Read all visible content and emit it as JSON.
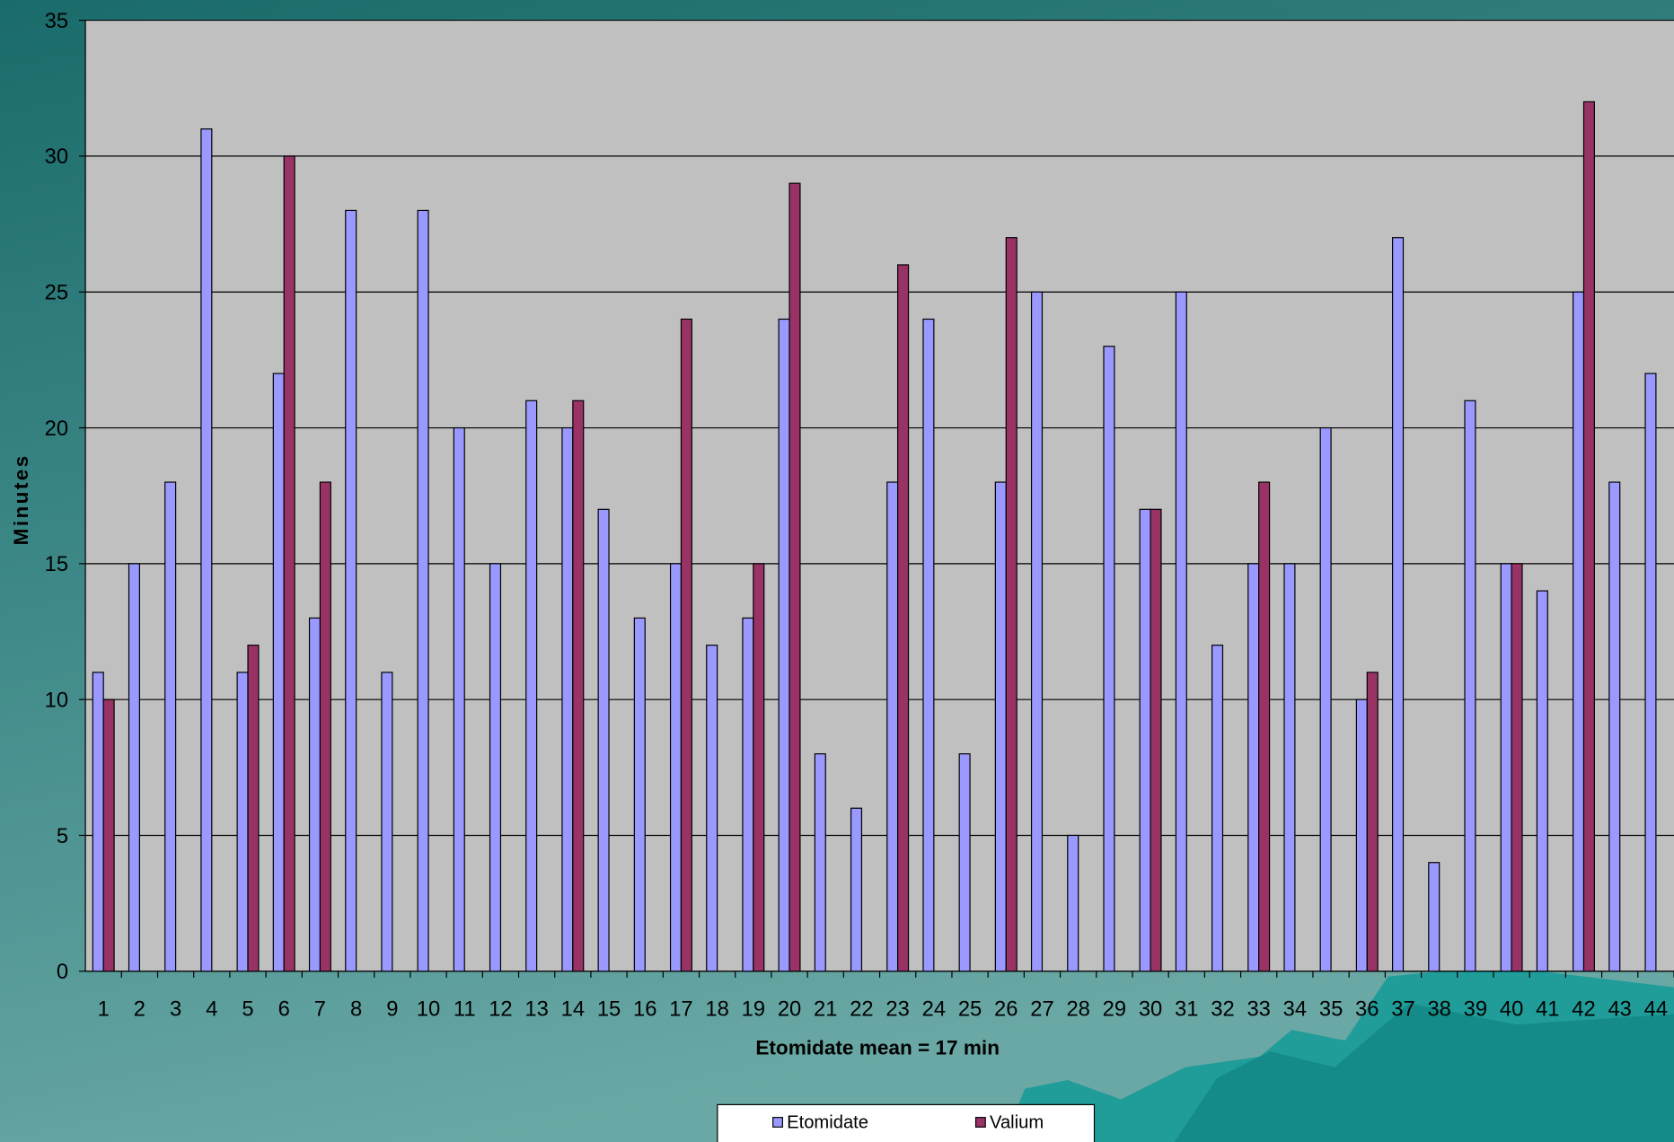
{
  "chart_data": {
    "type": "bar",
    "x_label": "Etomidate mean = 17 min",
    "y_label": "Minutes",
    "categories": [
      "1",
      "2",
      "3",
      "4",
      "5",
      "6",
      "7",
      "8",
      "9",
      "10",
      "11",
      "12",
      "13",
      "14",
      "15",
      "16",
      "17",
      "18",
      "19",
      "20",
      "21",
      "22",
      "23",
      "24",
      "25",
      "26",
      "27",
      "28",
      "29",
      "30",
      "31",
      "32",
      "33",
      "34",
      "35",
      "36",
      "37",
      "38",
      "39",
      "40",
      "41",
      "42",
      "43",
      "44"
    ],
    "series": [
      {
        "name": "Etomidate",
        "color": "#9999ff",
        "values": [
          11,
          15,
          18,
          31,
          11,
          22,
          13,
          28,
          11,
          28,
          20,
          15,
          21,
          20,
          17,
          13,
          15,
          12,
          13,
          24,
          8,
          6,
          18,
          24,
          8,
          18,
          25,
          5,
          23,
          17,
          25,
          12,
          15,
          15,
          20,
          10,
          27,
          4,
          21,
          15,
          14,
          25,
          18,
          22
        ]
      },
      {
        "name": "Valium",
        "color": "#993366",
        "values": [
          10,
          null,
          null,
          null,
          12,
          30,
          18,
          null,
          null,
          null,
          null,
          null,
          null,
          21,
          null,
          null,
          24,
          null,
          15,
          29,
          null,
          null,
          26,
          null,
          null,
          27,
          null,
          null,
          null,
          17,
          null,
          null,
          18,
          null,
          null,
          11,
          null,
          null,
          null,
          15,
          null,
          32,
          null,
          null
        ]
      }
    ],
    "ylim": [
      0,
      35
    ],
    "yticks": [
      0,
      5,
      10,
      15,
      20,
      25,
      30,
      35
    ],
    "grid": true,
    "legend": "bottom"
  }
}
